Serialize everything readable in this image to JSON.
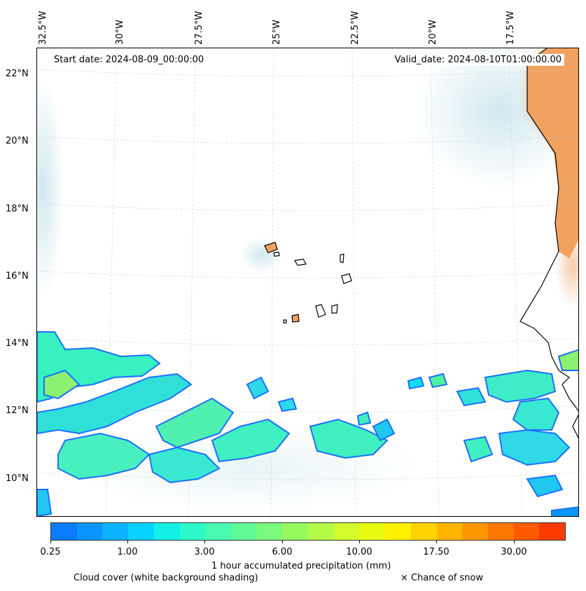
{
  "map": {
    "start_date": "Start date: 2024-08-09_00:00:00",
    "valid_date": "Valid_date: 2024-08-10T01:00:00.00",
    "lon_labels": [
      "32.5°W",
      "30°W",
      "27.5°W",
      "25°W",
      "22.5°W",
      "20°W",
      "17.5°W"
    ],
    "lat_labels": [
      "22°N",
      "20°N",
      "18°N",
      "16°N",
      "14°N",
      "12°N",
      "10°N"
    ],
    "region": "Cape Verde / West African coast",
    "extent": {
      "lon_min": -32.5,
      "lon_max": -15.5,
      "lat_min": 8.9,
      "lat_max": 22.8
    }
  },
  "colorbar": {
    "label": "1 hour accumulated precipitation (mm)",
    "tick_labels": [
      "0.25",
      "1.00",
      "3.00",
      "6.00",
      "10.00",
      "17.50",
      "30.00"
    ],
    "colors": [
      "#0a7cff",
      "#0a96ff",
      "#0ab4ff",
      "#0ad2ff",
      "#12f0e6",
      "#2dfac8",
      "#48fab0",
      "#5ffa96",
      "#7afa7a",
      "#96fa5f",
      "#b4fa48",
      "#d2fa2d",
      "#e6fa12",
      "#fff000",
      "#ffd200",
      "#ffb400",
      "#ff9600",
      "#ff7800",
      "#ff5a00",
      "#ff3c00"
    ]
  },
  "captions": {
    "cloud_cover": "Cloud cover (white background shading)",
    "snow": "× Chance of snow"
  }
}
